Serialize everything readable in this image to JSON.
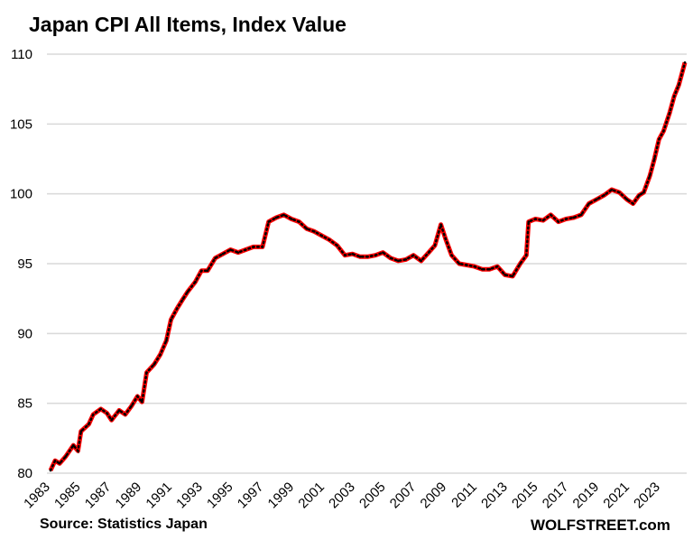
{
  "chart_data": {
    "type": "line",
    "title": "Japan CPI All Items, Index Value",
    "xlabel": "",
    "ylabel": "",
    "xlim": [
      1983,
      2024.7
    ],
    "ylim": [
      80,
      110
    ],
    "grid": "horizontal",
    "legend": "none",
    "y_ticks": [
      "80",
      "85",
      "90",
      "95",
      "100",
      "105",
      "110"
    ],
    "x_ticks": [
      "1983",
      "1985",
      "1987",
      "1989",
      "1991",
      "1993",
      "1995",
      "1997",
      "1999",
      "2001",
      "2003",
      "2005",
      "2007",
      "2009",
      "2011",
      "2013",
      "2015",
      "2017",
      "2019",
      "2021",
      "2023"
    ],
    "line_color": "#ff0000",
    "marker_color": "#000000",
    "series": [
      {
        "x": [
          1983.0,
          1983.3,
          1983.6,
          1984.0,
          1984.5,
          1984.8,
          1985.0,
          1985.5,
          1985.8,
          1986.3,
          1986.7,
          1987.0,
          1987.5,
          1987.9,
          1988.3,
          1988.7,
          1989.0,
          1989.3,
          1989.8,
          1990.2,
          1990.6,
          1990.9,
          1991.3,
          1991.7,
          1992.0,
          1992.5,
          1992.9,
          1993.3,
          1993.8,
          1994.3,
          1994.8,
          1995.3,
          1995.8,
          1996.3,
          1996.9,
          1997.3,
          1997.8,
          1998.3,
          1998.8,
          1999.3,
          1999.8,
          2000.3,
          2000.8,
          2001.3,
          2001.8,
          2002.3,
          2002.8,
          2003.3,
          2003.8,
          2004.3,
          2004.8,
          2005.3,
          2005.8,
          2006.3,
          2006.8,
          2007.3,
          2007.8,
          2008.2,
          2008.6,
          2008.9,
          2009.3,
          2009.8,
          2010.3,
          2010.8,
          2011.3,
          2011.8,
          2012.3,
          2012.8,
          2013.3,
          2013.8,
          2014.2,
          2014.35,
          2014.8,
          2015.3,
          2015.8,
          2016.3,
          2016.8,
          2017.3,
          2017.8,
          2018.3,
          2018.8,
          2019.3,
          2019.8,
          2020.3,
          2020.8,
          2021.2,
          2021.6,
          2021.9,
          2022.3,
          2022.6,
          2022.9,
          2023.2,
          2023.6,
          2023.9,
          2024.2,
          2024.6
        ],
        "y": [
          80.2,
          80.9,
          80.7,
          81.2,
          82.0,
          81.6,
          83.0,
          83.5,
          84.2,
          84.6,
          84.3,
          83.8,
          84.5,
          84.2,
          84.8,
          85.5,
          85.1,
          87.2,
          87.8,
          88.5,
          89.5,
          91.0,
          91.8,
          92.5,
          93.0,
          93.7,
          94.5,
          94.5,
          95.4,
          95.7,
          96.0,
          95.8,
          96.0,
          96.2,
          96.2,
          98.0,
          98.3,
          98.5,
          98.2,
          98.0,
          97.5,
          97.3,
          97.0,
          96.7,
          96.3,
          95.6,
          95.7,
          95.5,
          95.5,
          95.6,
          95.8,
          95.4,
          95.2,
          95.3,
          95.6,
          95.2,
          95.8,
          96.3,
          97.8,
          96.8,
          95.6,
          95.0,
          94.9,
          94.8,
          94.6,
          94.6,
          94.8,
          94.2,
          94.1,
          95.0,
          95.6,
          98.0,
          98.2,
          98.1,
          98.5,
          98.0,
          98.2,
          98.3,
          98.5,
          99.3,
          99.6,
          99.9,
          100.3,
          100.1,
          99.6,
          99.3,
          99.9,
          100.1,
          101.3,
          102.5,
          103.9,
          104.5,
          105.8,
          107.0,
          107.8,
          109.4
        ]
      }
    ]
  },
  "footer": {
    "source": "Source: Statistics Japan",
    "brand": "WOLFSTREET.com"
  }
}
